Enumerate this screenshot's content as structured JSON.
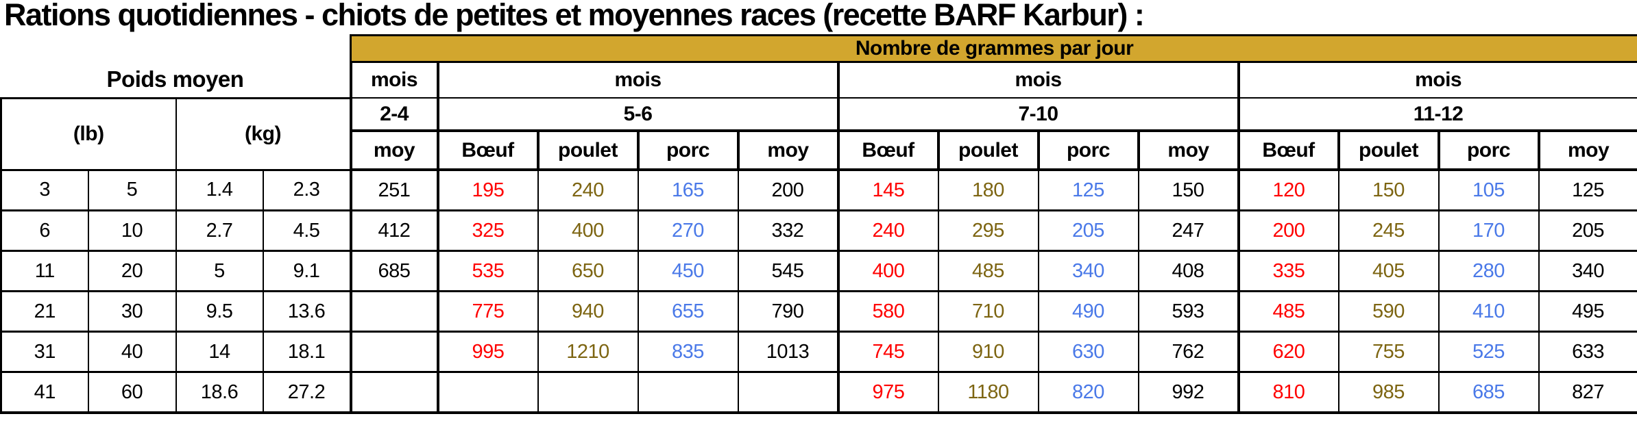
{
  "title": "Rations quotidiennes - chiots de petites et moyennes races (recette BARF Karbur) :",
  "table": {
    "grams_header": "Nombre de grammes par jour",
    "weight_header": "Poids moyen",
    "mois_label": "mois",
    "unit_lb": "(lb)",
    "unit_kg": "(kg)",
    "month_ranges": [
      "2-4",
      "5-6",
      "7-10",
      "11-12"
    ],
    "sub_headers": {
      "moy": "moy",
      "beef": "Bœuf",
      "chicken": "poulet",
      "pork": "porc"
    },
    "rows": [
      {
        "cells": [
          "3",
          "5",
          "1.4",
          "2.3",
          "251",
          "195",
          "240",
          "165",
          "200",
          "145",
          "180",
          "125",
          "150",
          "120",
          "150",
          "105",
          "125"
        ]
      },
      {
        "cells": [
          "6",
          "10",
          "2.7",
          "4.5",
          "412",
          "325",
          "400",
          "270",
          "332",
          "240",
          "295",
          "205",
          "247",
          "200",
          "245",
          "170",
          "205"
        ]
      },
      {
        "cells": [
          "11",
          "20",
          "5",
          "9.1",
          "685",
          "535",
          "650",
          "450",
          "545",
          "400",
          "485",
          "340",
          "408",
          "335",
          "405",
          "280",
          "340"
        ]
      },
      {
        "cells": [
          "21",
          "30",
          "9.5",
          "13.6",
          "",
          "775",
          "940",
          "655",
          "790",
          "580",
          "710",
          "490",
          "593",
          "485",
          "590",
          "410",
          "495"
        ]
      },
      {
        "cells": [
          "31",
          "40",
          "14",
          "18.1",
          "",
          "995",
          "1210",
          "835",
          "1013",
          "745",
          "910",
          "630",
          "762",
          "620",
          "755",
          "525",
          "633"
        ]
      },
      {
        "cells": [
          "41",
          "60",
          "18.6",
          "27.2",
          "",
          "",
          "",
          "",
          "",
          "975",
          "1180",
          "820",
          "992",
          "810",
          "985",
          "685",
          "827"
        ]
      }
    ]
  },
  "colors": {
    "header_gold": "#D2A62E",
    "beef_red": "#FF0000",
    "chicken_olive": "#7D6512",
    "pork_blue": "#4A79E8",
    "text_black": "#000000"
  }
}
